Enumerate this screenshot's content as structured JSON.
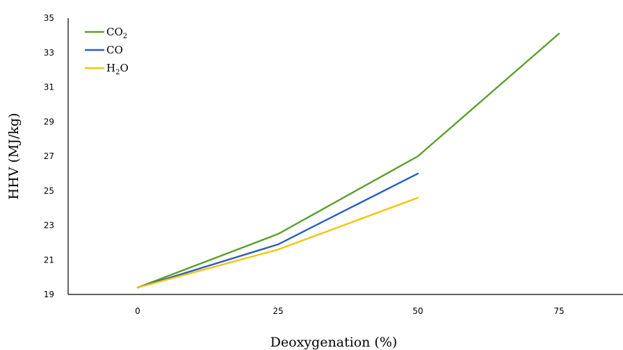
{
  "chart_data": {
    "type": "line",
    "xlabel": "Deoxygenation (%)",
    "ylabel": "HHV (MJ/kg)",
    "categories": [
      "0",
      "25",
      "50",
      "75"
    ],
    "ylim": [
      19,
      35
    ],
    "yticks": [
      "19",
      "21",
      "23",
      "25",
      "27",
      "29",
      "31",
      "33",
      "35"
    ],
    "grid": false,
    "legend_position": "top-left",
    "series": [
      {
        "name": "CO2",
        "name_main": "CO",
        "name_sub": "2",
        "name_tail": "",
        "color": "#5b9e2b",
        "values": [
          19.4,
          22.5,
          27.0,
          34.1
        ]
      },
      {
        "name": "CO",
        "name_main": "CO",
        "name_sub": "",
        "name_tail": "",
        "color": "#2a5cbf",
        "values": [
          19.4,
          21.9,
          26.0,
          null
        ]
      },
      {
        "name": "H2O",
        "name_main": "H",
        "name_sub": "2",
        "name_tail": "O",
        "color": "#f5c400",
        "values": [
          19.4,
          21.6,
          24.6,
          null
        ]
      }
    ]
  }
}
